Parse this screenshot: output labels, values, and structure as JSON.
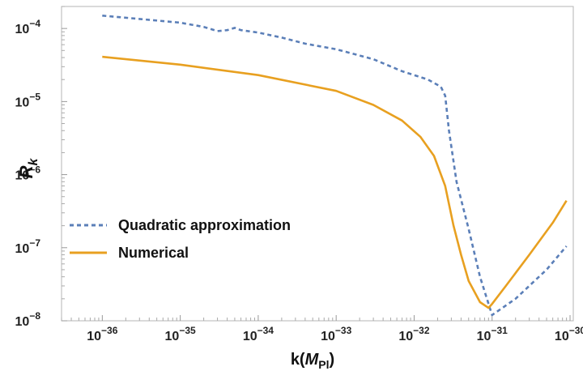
{
  "chart_data": {
    "type": "line",
    "xscale": "log",
    "yscale": "log",
    "title": "",
    "xlabel": {
      "prefix": "k(",
      "symbol": "M",
      "subscript": "Pl",
      "suffix": ")"
    },
    "ylabel": {
      "symbol": "R",
      "subscript": "k"
    },
    "xlim": [
      3e-37,
      1.1e-30
    ],
    "ylim": [
      1e-08,
      0.0002
    ],
    "grid": false,
    "legend_position": "lower-left",
    "x_ticks": [
      {
        "value": 1e-36,
        "base": "10",
        "exp": "−36"
      },
      {
        "value": 1e-35,
        "base": "10",
        "exp": "−35"
      },
      {
        "value": 1e-34,
        "base": "10",
        "exp": "−34"
      },
      {
        "value": 1e-33,
        "base": "10",
        "exp": "−33"
      },
      {
        "value": 1e-32,
        "base": "10",
        "exp": "−32"
      },
      {
        "value": 1e-31,
        "base": "10",
        "exp": "−31"
      },
      {
        "value": 1e-30,
        "base": "10",
        "exp": "−30"
      }
    ],
    "y_ticks": [
      {
        "value": 1e-08,
        "base": "10",
        "exp": "−8"
      },
      {
        "value": 1e-07,
        "base": "10",
        "exp": "−7"
      },
      {
        "value": 1e-06,
        "base": "10",
        "exp": "−6"
      },
      {
        "value": 1e-05,
        "base": "10",
        "exp": "−5"
      },
      {
        "value": 0.0001,
        "base": "10",
        "exp": "−4"
      }
    ],
    "series": [
      {
        "name": "Quadratic approximation",
        "color": "#5b7fb8",
        "style": "dashed",
        "x": [
          1e-36,
          3e-36,
          1e-35,
          2e-35,
          3e-35,
          4e-35,
          5e-35,
          6e-35,
          1e-34,
          2e-34,
          4e-34,
          1e-33,
          3e-33,
          7e-33,
          1.5e-32,
          2.2e-32,
          2.5e-32,
          2.8e-32,
          3.5e-32,
          5e-32,
          7e-32,
          1e-31,
          2e-31,
          5e-31,
          9e-31
        ],
        "y": [
          0.00015,
          0.000135,
          0.00012,
          0.000105,
          9.2e-05,
          9.5e-05,
          0.000102,
          9.5e-05,
          8.8e-05,
          7.5e-05,
          6.2e-05,
          5.2e-05,
          3.8e-05,
          2.6e-05,
          2e-05,
          1.6e-05,
          1.2e-05,
          4e-06,
          8e-07,
          1.8e-07,
          4e-08,
          1.2e-08,
          2e-08,
          5e-08,
          1.05e-07
        ]
      },
      {
        "name": "Numerical",
        "color": "#e8a020",
        "style": "solid",
        "x": [
          1e-36,
          1e-35,
          1e-34,
          1e-33,
          3e-33,
          7e-33,
          1.2e-32,
          1.8e-32,
          2.5e-32,
          3.2e-32,
          4e-32,
          5e-32,
          7e-32,
          9e-32,
          1e-31,
          1.5e-31,
          3e-31,
          6e-31,
          9e-31
        ],
        "y": [
          4.1e-05,
          3.2e-05,
          2.3e-05,
          1.4e-05,
          9e-06,
          5.5e-06,
          3.3e-06,
          1.8e-06,
          7e-07,
          2e-07,
          8e-08,
          3.5e-08,
          1.8e-08,
          1.5e-08,
          1.7e-08,
          3e-08,
          8e-08,
          2.2e-07,
          4.4e-07
        ]
      }
    ]
  }
}
